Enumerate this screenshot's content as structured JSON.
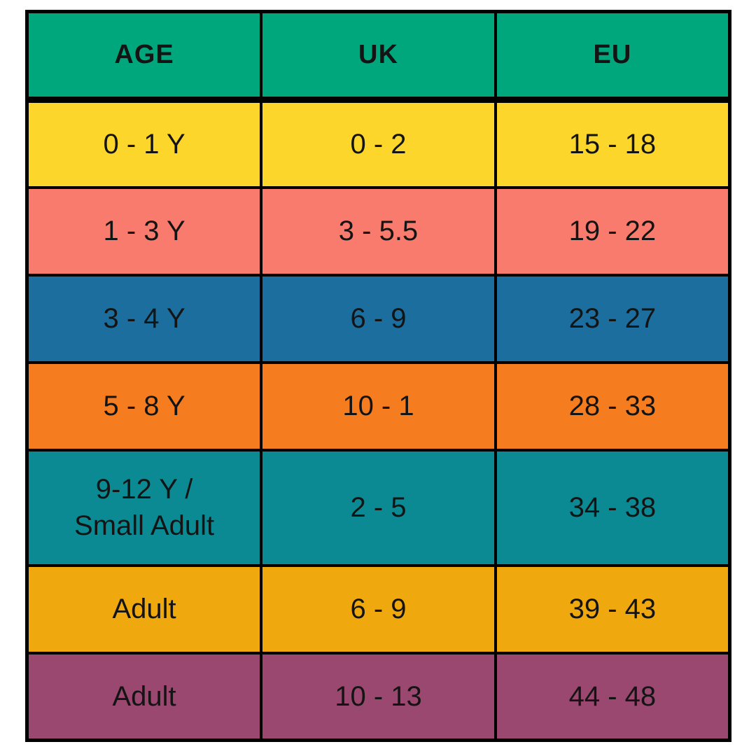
{
  "chart_data": {
    "type": "table",
    "columns": [
      "AGE",
      "UK",
      "EU"
    ],
    "rows": [
      {
        "age": "0 - 1 Y",
        "uk": "0 - 2",
        "eu": "15 - 18"
      },
      {
        "age": "1 - 3 Y",
        "uk": "3 - 5.5",
        "eu": "19 - 22"
      },
      {
        "age": "3 - 4 Y",
        "uk": "6 - 9",
        "eu": "23 - 27"
      },
      {
        "age": "5 - 8 Y",
        "uk": "10 - 1",
        "eu": "28 - 33"
      },
      {
        "age": "9-12 Y /\nSmall Adult",
        "uk": "2 - 5",
        "eu": "34 - 38"
      },
      {
        "age": "Adult",
        "uk": "6 - 9",
        "eu": "39 - 43"
      },
      {
        "age": "Adult",
        "uk": "10 - 13",
        "eu": "44 - 48"
      }
    ]
  },
  "style": {
    "page_bg": "#FFFFFF",
    "border_color": "#000000",
    "text_color": "#141414",
    "header_bg": "#00A77D",
    "row_colors": [
      "#FCD62B",
      "#F87B6D",
      "#1B6E9E",
      "#F57D20",
      "#0B8A94",
      "#EFA80D",
      "#9A4870"
    ]
  }
}
